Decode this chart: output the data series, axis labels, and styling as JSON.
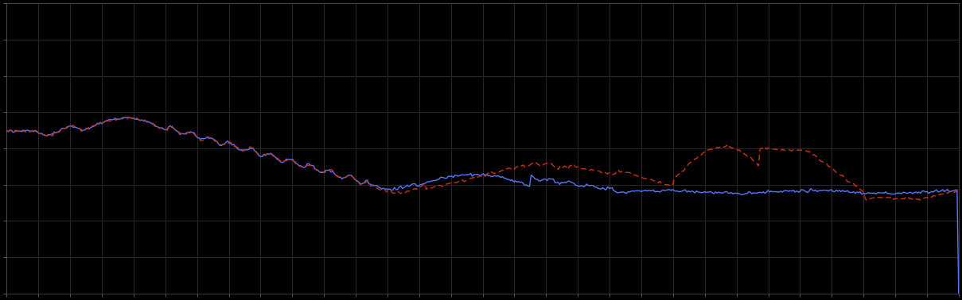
{
  "background_color": "#000000",
  "plot_bg_color": "#000000",
  "grid_color": "#2a2a2a",
  "blue_line_color": "#5577ff",
  "red_line_color": "#cc3311",
  "figsize": [
    12.09,
    3.78
  ],
  "dpi": 100,
  "xlim": [
    0,
    100
  ],
  "ylim": [
    0,
    10
  ],
  "n_xticks": 31,
  "n_yticks": 9
}
